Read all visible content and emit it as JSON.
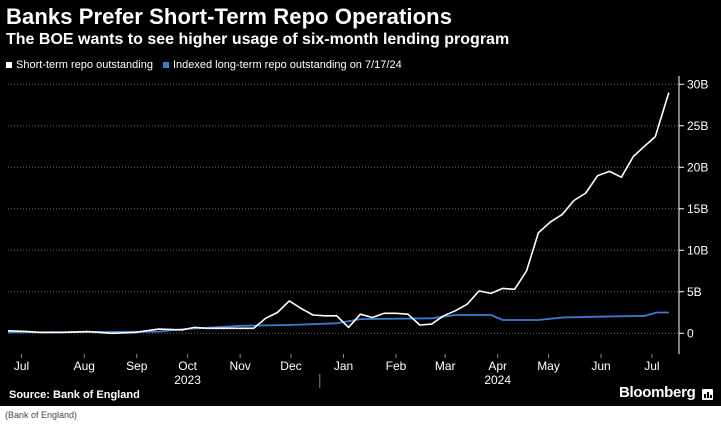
{
  "header": {
    "title": "Banks Prefer Short-Term Repo Operations",
    "subtitle": "The BOE wants to see higher usage of six-month lending program"
  },
  "footer": {
    "source": "Source: Bank of England",
    "brand": "Bloomberg",
    "caption": "(Bank of England)"
  },
  "colors": {
    "background": "#000000",
    "short_term": "#ffffff",
    "long_term": "#3a7bd5",
    "grid": "#666666"
  },
  "chart_data": {
    "type": "line",
    "title": "Banks Prefer Short-Term Repo Operations",
    "subtitle": "The BOE wants to see higher usage of six-month lending program",
    "xlabel": "",
    "ylabel": "",
    "x_range": [
      "2023-07-01",
      "2024-07-31"
    ],
    "ylim": [
      -2.5,
      31
    ],
    "y_ticks": [
      0,
      5,
      10,
      15,
      20,
      25,
      30
    ],
    "y_tick_labels": [
      "0",
      "5B",
      "10B",
      "15B",
      "20B",
      "25B",
      "30B"
    ],
    "y_axis_position": "right",
    "grid": "horizontal dotted",
    "legend_position": "top-left",
    "x_ticks": [
      {
        "date": "2023-07-09",
        "label": "Jul"
      },
      {
        "date": "2023-08-15",
        "label": "Aug"
      },
      {
        "date": "2023-09-15",
        "label": "Sep"
      },
      {
        "date": "2023-10-15",
        "label": "Oct"
      },
      {
        "date": "2023-11-15",
        "label": "Nov"
      },
      {
        "date": "2023-12-15",
        "label": "Dec"
      },
      {
        "date": "2024-01-15",
        "label": "Jan"
      },
      {
        "date": "2024-02-15",
        "label": "Feb"
      },
      {
        "date": "2024-03-15",
        "label": "Mar"
      },
      {
        "date": "2024-04-15",
        "label": "Apr"
      },
      {
        "date": "2024-05-15",
        "label": "May"
      },
      {
        "date": "2024-06-15",
        "label": "Jun"
      },
      {
        "date": "2024-07-15",
        "label": "Jul"
      }
    ],
    "year_labels": [
      {
        "date": "2023-10-15",
        "label": "2023"
      },
      {
        "date": "2024-04-15",
        "label": "2024"
      }
    ],
    "year_divider_date": "2024-01-01",
    "series": [
      {
        "name": "Short-term repo outstanding",
        "color": "#ffffff",
        "points": [
          [
            "2023-07-01",
            0.3
          ],
          [
            "2023-07-13",
            0.2
          ],
          [
            "2023-07-20",
            0.1
          ],
          [
            "2023-08-02",
            0.1
          ],
          [
            "2023-08-17",
            0.2
          ],
          [
            "2023-08-31",
            0.0
          ],
          [
            "2023-09-14",
            0.1
          ],
          [
            "2023-09-28",
            0.5
          ],
          [
            "2023-10-12",
            0.4
          ],
          [
            "2023-10-19",
            0.7
          ],
          [
            "2023-10-26",
            0.6
          ],
          [
            "2023-11-09",
            0.6
          ],
          [
            "2023-11-23",
            0.6
          ],
          [
            "2023-11-30",
            1.8
          ],
          [
            "2023-12-07",
            2.5
          ],
          [
            "2023-12-14",
            3.9
          ],
          [
            "2023-12-21",
            3.0
          ],
          [
            "2023-12-28",
            2.2
          ],
          [
            "2024-01-04",
            2.1
          ],
          [
            "2024-01-11",
            2.1
          ],
          [
            "2024-01-18",
            0.7
          ],
          [
            "2024-01-25",
            2.3
          ],
          [
            "2024-02-01",
            1.9
          ],
          [
            "2024-02-08",
            2.4
          ],
          [
            "2024-02-15",
            2.4
          ],
          [
            "2024-02-22",
            2.3
          ],
          [
            "2024-02-29",
            1.0
          ],
          [
            "2024-03-07",
            1.1
          ],
          [
            "2024-03-14",
            2.1
          ],
          [
            "2024-03-21",
            2.7
          ],
          [
            "2024-03-28",
            3.5
          ],
          [
            "2024-04-04",
            5.1
          ],
          [
            "2024-04-11",
            4.8
          ],
          [
            "2024-04-18",
            5.4
          ],
          [
            "2024-04-25",
            5.3
          ],
          [
            "2024-05-02",
            7.5
          ],
          [
            "2024-05-09",
            12.1
          ],
          [
            "2024-05-16",
            13.4
          ],
          [
            "2024-05-23",
            14.3
          ],
          [
            "2024-05-30",
            16.0
          ],
          [
            "2024-06-06",
            16.9
          ],
          [
            "2024-06-13",
            19.0
          ],
          [
            "2024-06-20",
            19.5
          ],
          [
            "2024-06-27",
            18.8
          ],
          [
            "2024-07-04",
            21.3
          ],
          [
            "2024-07-11",
            22.6
          ],
          [
            "2024-07-17",
            23.7
          ],
          [
            "2024-07-25",
            29.0
          ]
        ]
      },
      {
        "name": "Indexed long-term repo outstanding on 7/17/24",
        "color": "#3a7bd5",
        "points": [
          [
            "2023-07-01",
            0.1
          ],
          [
            "2023-09-28",
            0.2
          ],
          [
            "2023-10-12",
            0.5
          ],
          [
            "2023-11-16",
            0.9
          ],
          [
            "2023-12-14",
            1.0
          ],
          [
            "2024-01-11",
            1.2
          ],
          [
            "2024-01-25",
            1.7
          ],
          [
            "2024-03-07",
            1.8
          ],
          [
            "2024-03-21",
            2.2
          ],
          [
            "2024-04-11",
            2.2
          ],
          [
            "2024-04-18",
            1.6
          ],
          [
            "2024-05-09",
            1.6
          ],
          [
            "2024-05-23",
            1.9
          ],
          [
            "2024-06-13",
            2.0
          ],
          [
            "2024-07-11",
            2.1
          ],
          [
            "2024-07-18",
            2.5
          ],
          [
            "2024-07-25",
            2.5
          ]
        ]
      }
    ]
  }
}
